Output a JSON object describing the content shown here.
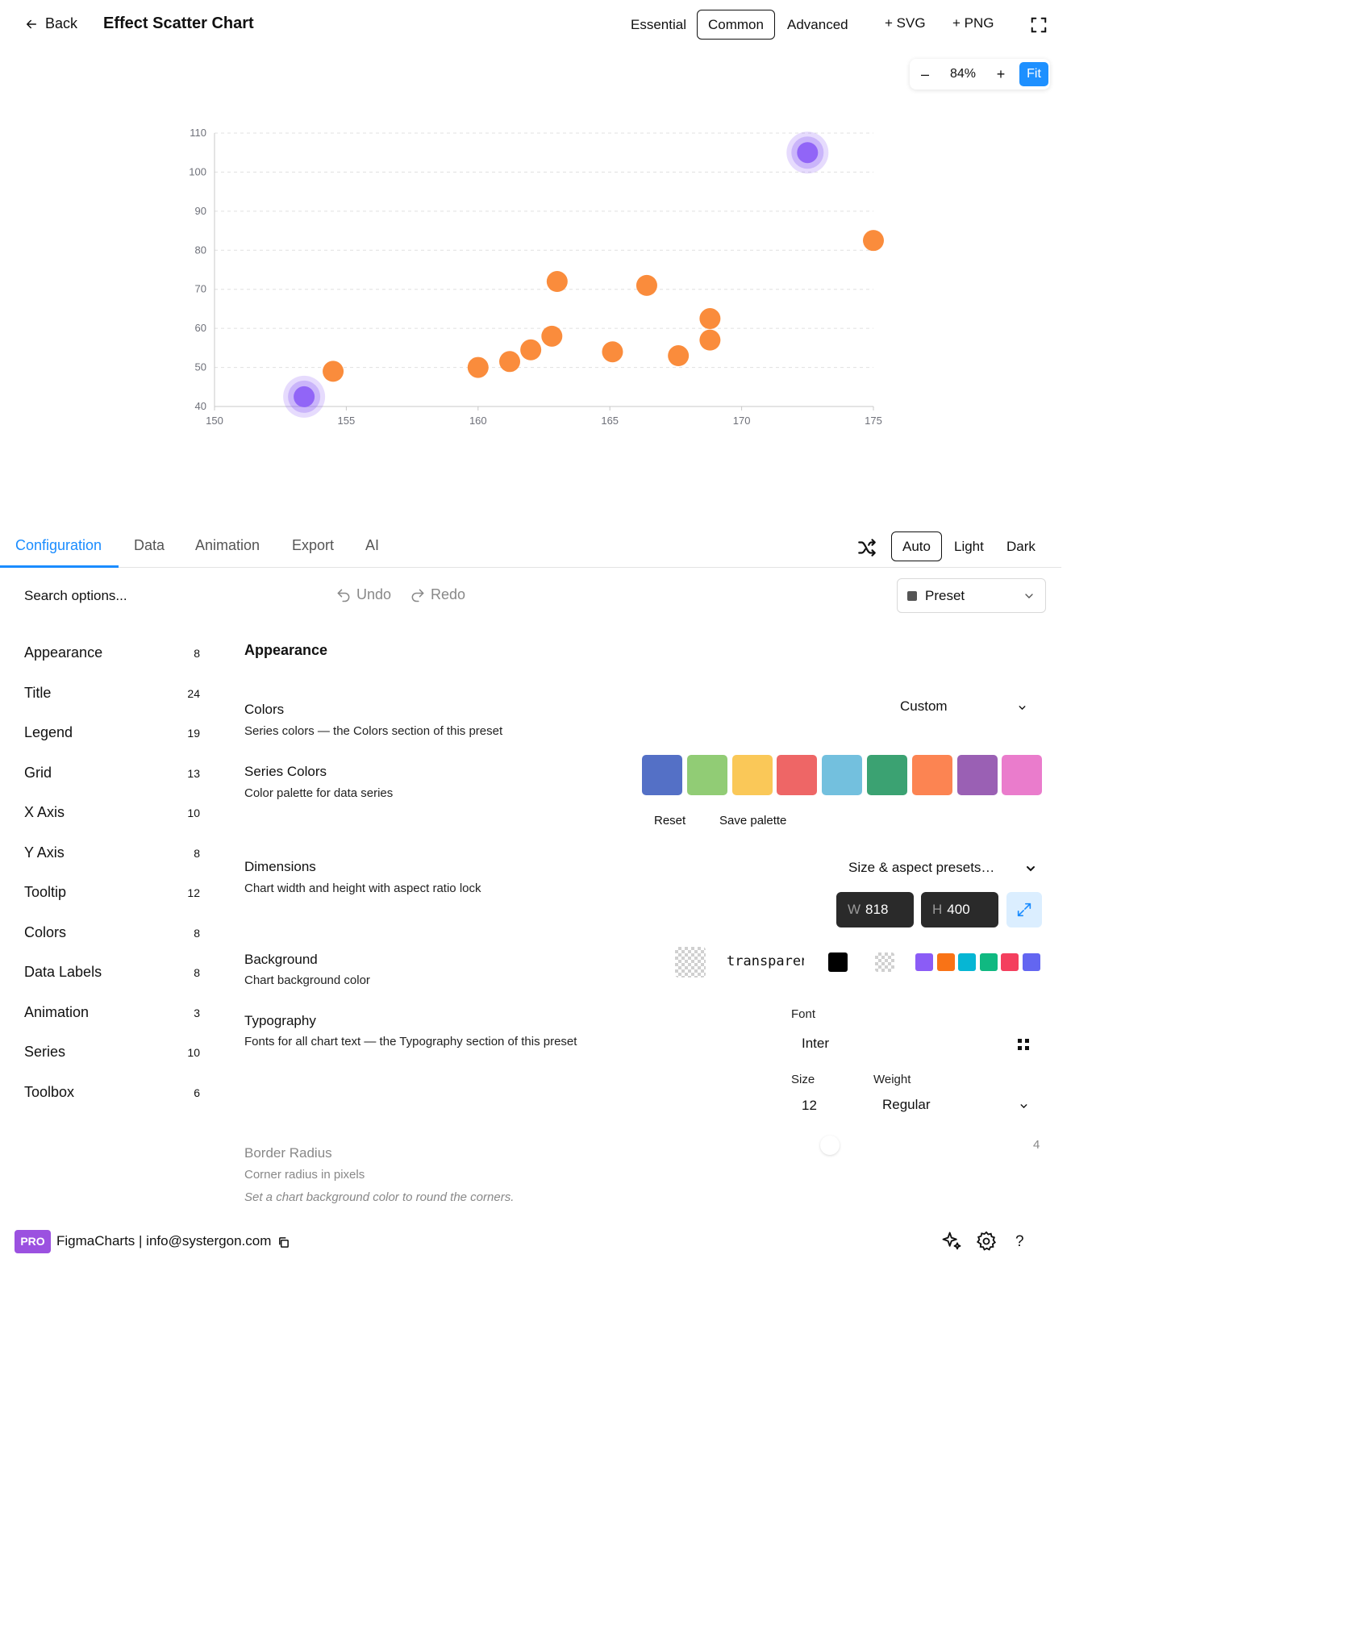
{
  "header": {
    "back_label": "Back",
    "title": "Effect Scatter Chart",
    "modes": [
      "Essential",
      "Common",
      "Advanced"
    ],
    "active_mode": "Common",
    "export_svg": "+ SVG",
    "export_png": "+ PNG"
  },
  "zoom": {
    "minus": "–",
    "value": "84%",
    "plus": "+",
    "fit": "Fit"
  },
  "chart_data": {
    "type": "scatter",
    "title": "",
    "xlabel": "",
    "ylabel": "",
    "xlim": [
      150,
      175
    ],
    "ylim": [
      40,
      110
    ],
    "x_ticks": [
      "150",
      "155",
      "160",
      "165",
      "170",
      "175"
    ],
    "y_ticks": [
      "40",
      "50",
      "60",
      "70",
      "80",
      "90",
      "100",
      "110"
    ],
    "grid": true,
    "series": [
      {
        "type": "scatter",
        "color": "#fa8c3c",
        "points": [
          [
            154.5,
            49
          ],
          [
            160,
            50
          ],
          [
            161.2,
            51.5
          ],
          [
            162,
            54.5
          ],
          [
            162.8,
            58
          ],
          [
            163,
            72
          ],
          [
            165.1,
            54
          ],
          [
            166.4,
            71
          ],
          [
            167.6,
            53
          ],
          [
            168.8,
            62.5
          ],
          [
            168.8,
            57
          ],
          [
            175,
            82.5
          ]
        ]
      },
      {
        "type": "effectScatter",
        "color": "#8b5cf6",
        "points": [
          [
            153.4,
            42.5
          ],
          [
            172.5,
            105
          ]
        ]
      }
    ]
  },
  "tabs": {
    "items": [
      "Configuration",
      "Data",
      "Animation",
      "Export",
      "AI"
    ],
    "active": "Configuration",
    "themes": [
      "Auto",
      "Light",
      "Dark"
    ],
    "active_theme": "Auto"
  },
  "toolbar": {
    "search_placeholder": "Search options...",
    "undo": "Undo",
    "redo": "Redo",
    "preset": "Preset"
  },
  "sidebar": {
    "items": [
      {
        "label": "Appearance",
        "count": "8"
      },
      {
        "label": "Title",
        "count": "24"
      },
      {
        "label": "Legend",
        "count": "19"
      },
      {
        "label": "Grid",
        "count": "13"
      },
      {
        "label": "X Axis",
        "count": "10"
      },
      {
        "label": "Y Axis",
        "count": "8"
      },
      {
        "label": "Tooltip",
        "count": "12"
      },
      {
        "label": "Colors",
        "count": "8"
      },
      {
        "label": "Data Labels",
        "count": "8"
      },
      {
        "label": "Animation",
        "count": "3"
      },
      {
        "label": "Series",
        "count": "10"
      },
      {
        "label": "Toolbox",
        "count": "6"
      }
    ]
  },
  "main": {
    "section_title": "Appearance",
    "colors": {
      "title": "Colors",
      "desc": "Series colors — the Colors section of this preset",
      "value": "Custom"
    },
    "series_colors": {
      "title": "Series Colors",
      "desc": "Color palette for data series",
      "palette": [
        "#5470c6",
        "#91cc75",
        "#fac858",
        "#ee6666",
        "#73c0de",
        "#3ba272",
        "#fc8452",
        "#9a60b4",
        "#ea7ccc"
      ],
      "reset": "Reset",
      "save": "Save palette"
    },
    "dimensions": {
      "title": "Dimensions",
      "desc": "Chart width and height with aspect ratio lock",
      "presets": "Size & aspect presets…",
      "w_prefix": "W",
      "w": "818",
      "h_prefix": "H",
      "h": "400"
    },
    "background": {
      "title": "Background",
      "desc": "Chart background color",
      "value": "transparent",
      "quick": [
        "#000000",
        "transparent"
      ],
      "mini": [
        "#8b5cf6",
        "#f97316",
        "#06b6d4",
        "#10b981",
        "#f43f5e",
        "#6366f1"
      ]
    },
    "typography": {
      "title": "Typography",
      "desc": "Fonts for all chart text — the Typography section of this preset",
      "font_label": "Font",
      "font": "Inter",
      "size_label": "Size",
      "size": "12",
      "weight_label": "Weight",
      "weight": "Regular"
    },
    "border_radius": {
      "title": "Border Radius",
      "desc": "Corner radius in pixels",
      "note": "Set a chart background color to round the corners.",
      "value": "4"
    }
  },
  "footer": {
    "badge": "PRO",
    "text": "FigmaCharts | info@systergon.com"
  }
}
